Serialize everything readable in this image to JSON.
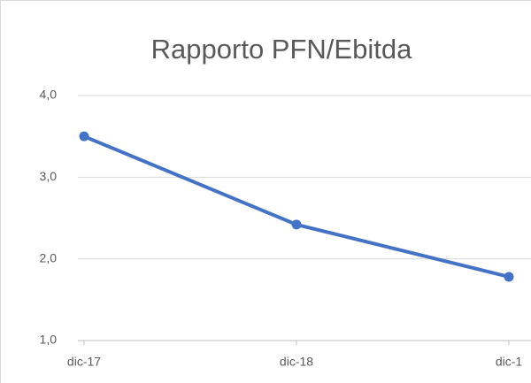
{
  "chart_data": {
    "type": "line",
    "title": "Rapporto PFN/Ebitda",
    "categories": [
      "dic-17",
      "dic-18",
      "dic-1"
    ],
    "series": [
      {
        "name": "Rapporto PFN/Ebitda",
        "color": "#4472c4",
        "values": [
          3.5,
          2.42,
          1.78
        ]
      }
    ],
    "ylim": [
      1,
      4
    ],
    "yticks": [
      {
        "value": 1,
        "label": "1,0"
      },
      {
        "value": 2,
        "label": "2,0"
      },
      {
        "value": 3,
        "label": "3,0"
      },
      {
        "value": 4,
        "label": "4,0"
      }
    ],
    "grid": true
  }
}
